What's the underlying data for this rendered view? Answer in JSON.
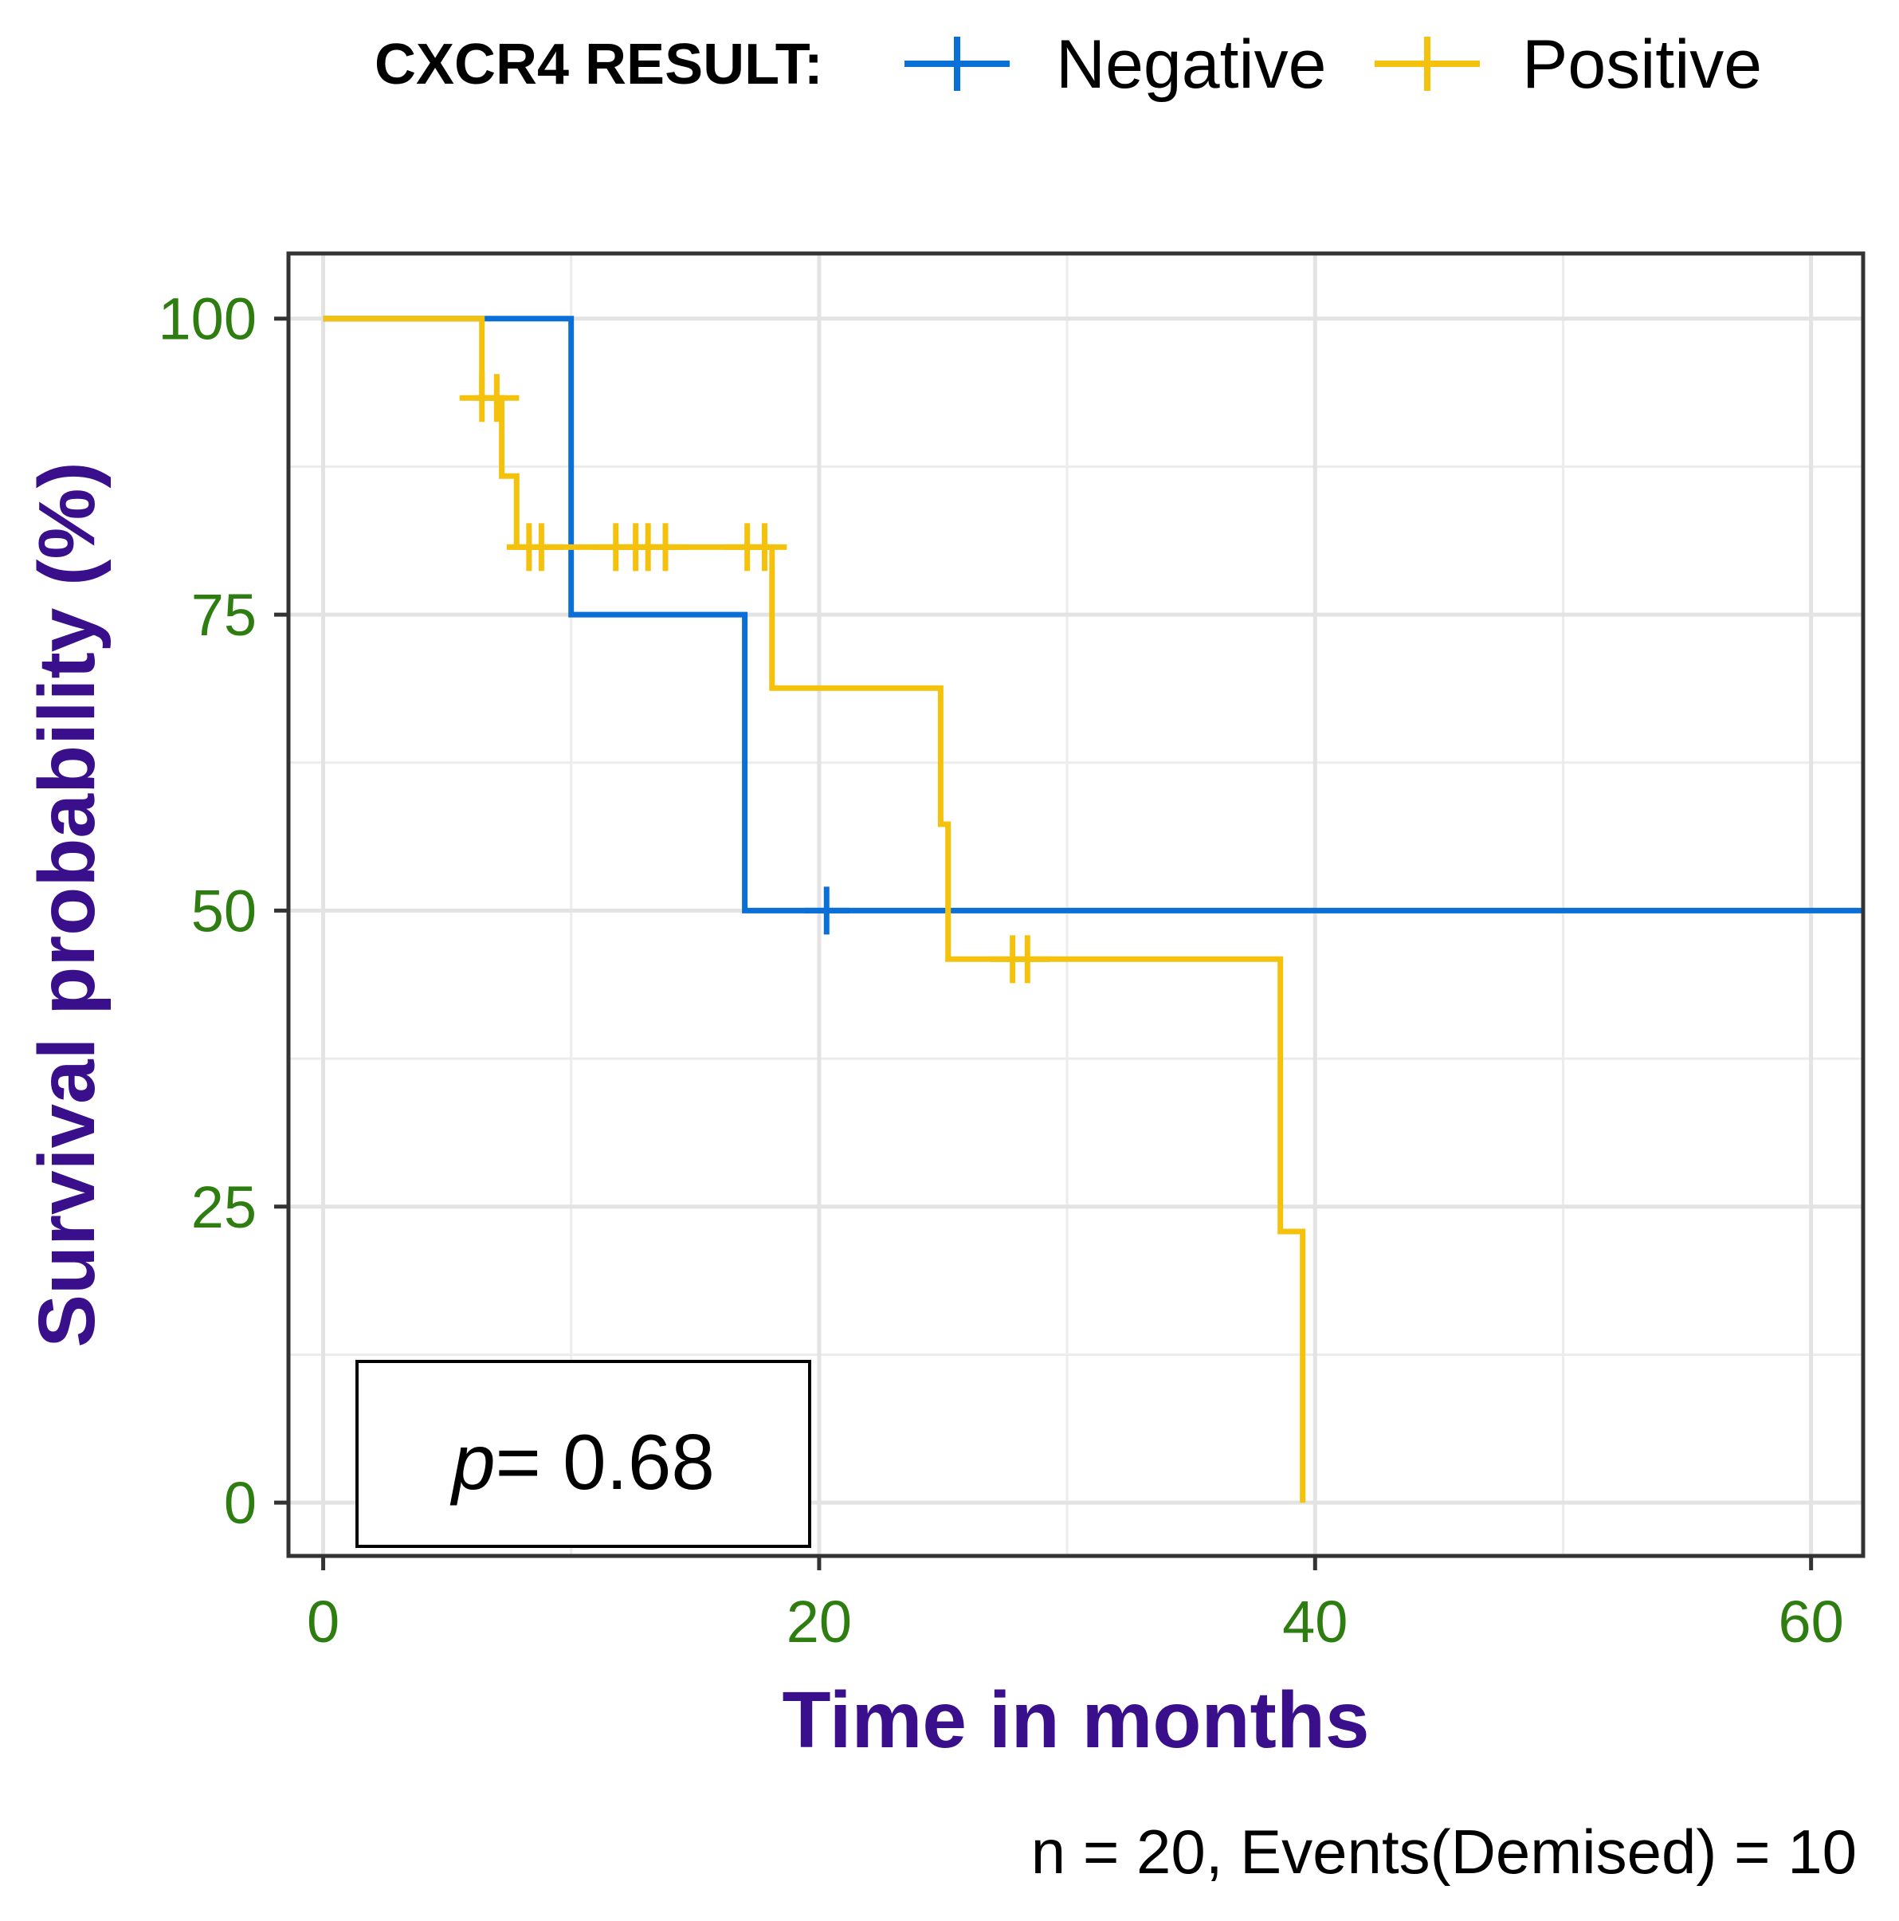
{
  "chart_data": {
    "type": "line",
    "subtype": "kaplan-meier",
    "title": "",
    "xlabel": "Time in months",
    "ylabel": "Survival probability (%)",
    "xlim": [
      -1.4,
      62.1
    ],
    "ylim": [
      -4.5,
      105.5
    ],
    "x_ticks": [
      0,
      20,
      40,
      60
    ],
    "y_ticks": [
      0,
      25,
      50,
      75,
      100
    ],
    "grid": true,
    "legend_position": "top",
    "legend": {
      "title": "CXCR4 RESULT:",
      "entries": [
        "Negative",
        "Positive"
      ]
    },
    "annotation": {
      "p_symbol": "p",
      "p_text": "= 0.68"
    },
    "caption": "n = 20, Events(Demised) = 10",
    "series": [
      {
        "name": "Negative",
        "color": "#0a6fd6",
        "steps": [
          [
            0,
            100
          ],
          [
            10,
            100
          ],
          [
            10,
            75
          ],
          [
            17,
            75
          ],
          [
            17,
            50
          ],
          [
            62.1,
            50
          ]
        ],
        "censored": [
          [
            20.3,
            50
          ]
        ]
      },
      {
        "name": "Positive",
        "color": "#f4c20d",
        "steps": [
          [
            0,
            100
          ],
          [
            6.4,
            100
          ],
          [
            6.4,
            93.3
          ],
          [
            7.2,
            93.3
          ],
          [
            7.2,
            86.7
          ],
          [
            7.8,
            86.7
          ],
          [
            7.8,
            80.7
          ],
          [
            18.1,
            80.7
          ],
          [
            18.1,
            68.8
          ],
          [
            24.9,
            68.8
          ],
          [
            24.9,
            57.3
          ],
          [
            25.2,
            57.3
          ],
          [
            25.2,
            45.9
          ],
          [
            38.6,
            45.9
          ],
          [
            38.6,
            22.9
          ],
          [
            39.5,
            22.9
          ],
          [
            39.5,
            0
          ]
        ],
        "censored": [
          [
            6.4,
            93.3
          ],
          [
            7.0,
            93.3
          ],
          [
            8.3,
            80.7
          ],
          [
            8.8,
            80.7
          ],
          [
            11.8,
            80.7
          ],
          [
            12.6,
            80.7
          ],
          [
            13.1,
            80.7
          ],
          [
            13.8,
            80.7
          ],
          [
            17.1,
            80.7
          ],
          [
            17.8,
            80.7
          ],
          [
            27.8,
            45.9
          ],
          [
            28.4,
            45.9
          ]
        ]
      }
    ]
  }
}
